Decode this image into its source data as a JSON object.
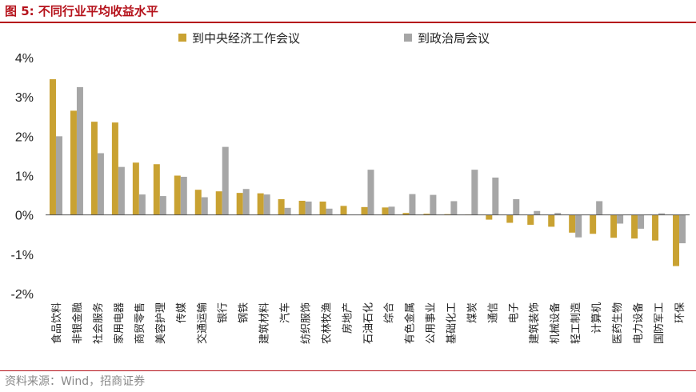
{
  "figure": {
    "title": "图 5:  不同行业平均收益水平",
    "source": "资料来源：Wind，招商证券"
  },
  "colors": {
    "series1": "#c9a232",
    "series2": "#a6a6a6",
    "accent": "#b5121b"
  },
  "chart_data": {
    "type": "bar",
    "ylim": [
      -2,
      4
    ],
    "yticks": [
      "4%",
      "3%",
      "2%",
      "1%",
      "0%",
      "-1%",
      "-2%"
    ],
    "legend": "top-center",
    "grid": false,
    "categories": [
      "食品饮料",
      "非银金融",
      "社会服务",
      "家用电器",
      "商贸零售",
      "美容护理",
      "传媒",
      "交通运输",
      "银行",
      "钢铁",
      "建筑材料",
      "汽车",
      "纺织服饰",
      "农林牧渔",
      "房地产",
      "石油石化",
      "综合",
      "有色金属",
      "公用事业",
      "基础化工",
      "煤炭",
      "通信",
      "电子",
      "建筑装饰",
      "机械设备",
      "轻工制造",
      "计算机",
      "医药生物",
      "电力设备",
      "国防军工",
      "环保"
    ],
    "series": [
      {
        "name": "到中央经济工作会议",
        "values": [
          3.45,
          2.65,
          2.37,
          2.35,
          1.33,
          1.29,
          1.0,
          0.64,
          0.6,
          0.56,
          0.55,
          0.4,
          0.36,
          0.34,
          0.23,
          0.2,
          0.19,
          0.05,
          0.03,
          0.02,
          0.01,
          -0.12,
          -0.2,
          -0.25,
          -0.3,
          -0.45,
          -0.48,
          -0.58,
          -0.6,
          -0.65,
          -1.3
        ]
      },
      {
        "name": "到政治局会议",
        "values": [
          2.0,
          3.25,
          1.57,
          1.22,
          0.52,
          0.48,
          0.97,
          0.45,
          1.73,
          0.66,
          0.52,
          0.18,
          0.34,
          0.16,
          0.0,
          1.15,
          0.21,
          0.53,
          0.51,
          0.35,
          1.15,
          0.95,
          0.4,
          0.1,
          0.05,
          -0.57,
          0.35,
          -0.22,
          -0.35,
          0.04,
          -0.72
        ]
      }
    ]
  }
}
